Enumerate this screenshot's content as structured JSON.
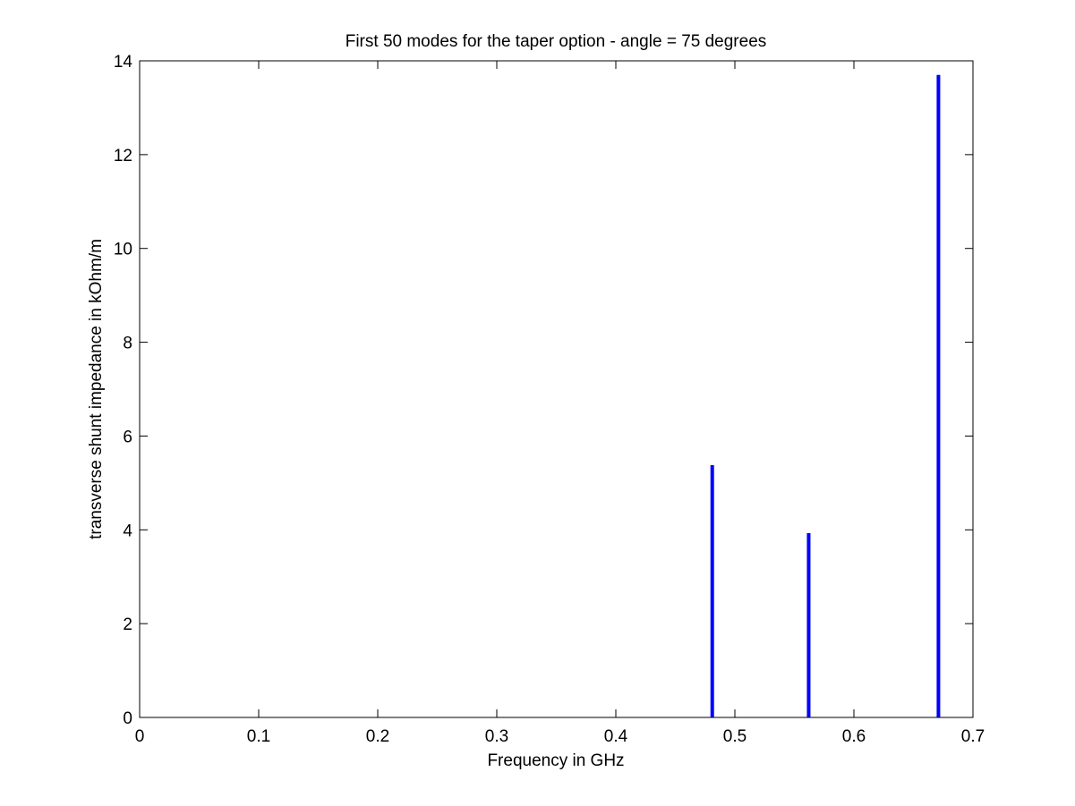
{
  "chart_data": {
    "type": "bar",
    "title": "First 50 modes for the taper option - angle = 75 degrees",
    "xlabel": "Frequency in GHz",
    "ylabel": "transverse shunt impedance in kOhm/m",
    "xlim": [
      0,
      0.7
    ],
    "ylim": [
      0,
      14
    ],
    "xticks": [
      "0",
      "0.1",
      "0.2",
      "0.3",
      "0.4",
      "0.5",
      "0.6",
      "0.7"
    ],
    "yticks": [
      "0",
      "2",
      "4",
      "6",
      "8",
      "10",
      "12",
      "14"
    ],
    "grid": false,
    "bar_color": "#0000ff",
    "x": [
      0.481,
      0.562,
      0.671
    ],
    "values": [
      5.38,
      3.93,
      13.7
    ]
  }
}
